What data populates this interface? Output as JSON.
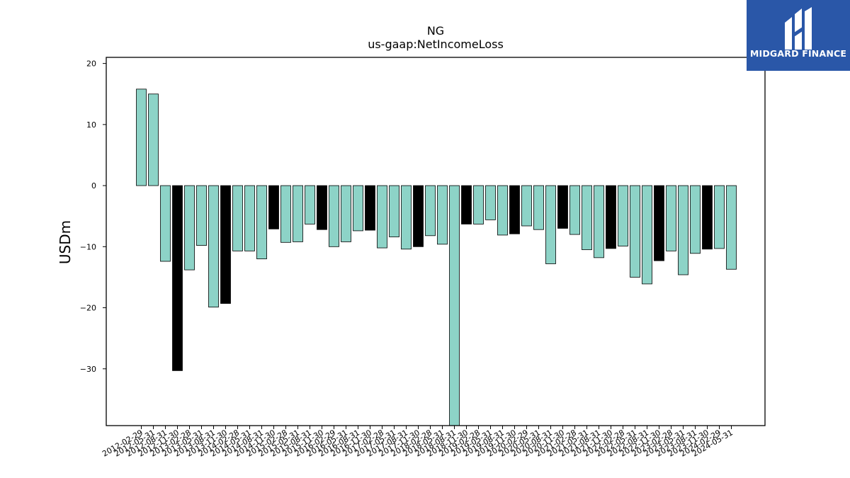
{
  "chart_data": {
    "type": "bar",
    "title": "NG",
    "subtitle": "us-gaap:NetIncomeLoss",
    "ylabel": "USDm",
    "xlabel": "",
    "ylim": [
      -39.3,
      21
    ],
    "yticks": [
      20,
      10,
      0,
      -10,
      -20,
      -30
    ],
    "grid": false,
    "colors": {
      "quarterly": "#8dd3c7",
      "annual": "#000000",
      "edge": "#000000"
    },
    "categories": [
      "2012-02-29",
      "2012-05-31",
      "2012-08-31",
      "2012-11-30",
      "2013-02-28",
      "2013-05-31",
      "2013-08-31",
      "2013-11-30",
      "2014-02-28",
      "2014-05-31",
      "2014-08-31",
      "2014-11-30",
      "2015-02-28",
      "2015-05-31",
      "2015-08-31",
      "2015-11-30",
      "2016-02-29",
      "2016-05-31",
      "2016-08-31",
      "2016-11-30",
      "2017-02-28",
      "2017-05-31",
      "2017-08-31",
      "2017-11-30",
      "2018-02-28",
      "2018-05-31",
      "2018-08-31",
      "2018-11-30",
      "2019-02-28",
      "2019-05-31",
      "2019-08-31",
      "2019-11-30",
      "2020-02-29",
      "2020-05-31",
      "2020-08-31",
      "2020-11-30",
      "2021-02-28",
      "2021-05-31",
      "2021-08-31",
      "2021-11-30",
      "2022-02-28",
      "2022-05-31",
      "2022-08-31",
      "2022-11-30",
      "2023-02-28",
      "2023-05-31",
      "2023-08-31",
      "2023-11-30",
      "2024-02-29",
      "2024-05-31"
    ],
    "values": [
      15.8,
      15.0,
      -12.4,
      -30.3,
      -13.8,
      -9.8,
      -19.9,
      -19.3,
      -10.7,
      -10.7,
      -12.0,
      -7.1,
      -9.3,
      -9.2,
      -6.3,
      -7.2,
      -10.0,
      -9.2,
      -7.4,
      -7.3,
      -10.2,
      -8.4,
      -10.4,
      -10.0,
      -8.2,
      -9.6,
      -39.3,
      -6.3,
      -6.3,
      -5.6,
      -8.1,
      -7.9,
      -6.6,
      -7.2,
      -12.8,
      -7.0,
      -8.0,
      -10.5,
      -11.8,
      -10.3,
      -9.9,
      -15.0,
      -16.1,
      -12.3,
      -10.7,
      -14.6,
      -11.1,
      -10.4,
      -10.3,
      -13.7
    ],
    "bar_kind": [
      "q",
      "q",
      "q",
      "a",
      "q",
      "q",
      "q",
      "a",
      "q",
      "q",
      "q",
      "a",
      "q",
      "q",
      "q",
      "a",
      "q",
      "q",
      "q",
      "a",
      "q",
      "q",
      "q",
      "a",
      "q",
      "q",
      "q",
      "a",
      "q",
      "q",
      "q",
      "a",
      "q",
      "q",
      "q",
      "a",
      "q",
      "q",
      "q",
      "a",
      "q",
      "q",
      "q",
      "a",
      "q",
      "q",
      "q",
      "a",
      "q",
      "q"
    ]
  },
  "logo": {
    "text": "MIDGARD FINANCE"
  }
}
